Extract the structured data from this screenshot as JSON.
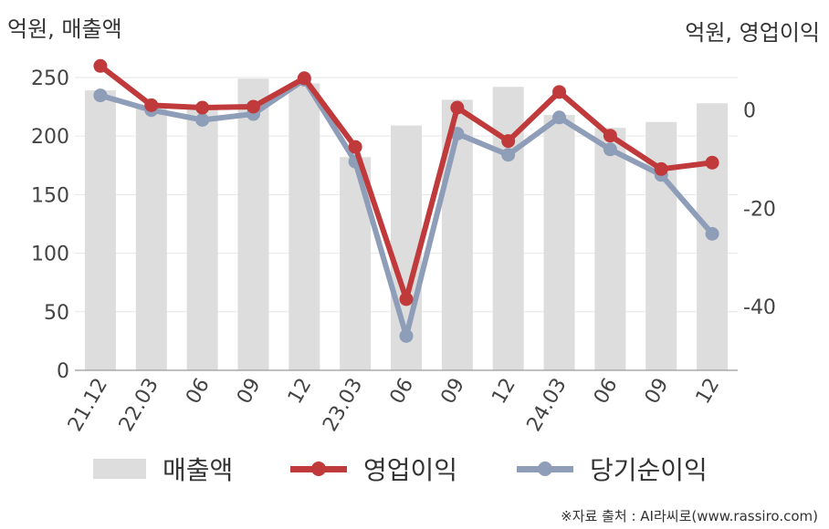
{
  "chart_data": {
    "type": "bar+line",
    "left_axis_label": "억원, 매출액",
    "right_axis_label": "억원, 영업이익",
    "categories": [
      "21.12",
      "22.03",
      "06",
      "09",
      "12",
      "23.03",
      "06",
      "09",
      "12",
      "24.03",
      "06",
      "09",
      "12"
    ],
    "left_ticks": [
      "0",
      "50",
      "100",
      "150",
      "200",
      "250"
    ],
    "right_ticks": [
      "0",
      "-20",
      "-40"
    ],
    "left_ylim": [
      0,
      285
    ],
    "right_ylim": [
      -53,
      15
    ],
    "series": [
      {
        "name": "매출액",
        "type": "bar",
        "axis": "left",
        "color": "#dddddd",
        "values": [
          239,
          225,
          224,
          249,
          245,
          182,
          209,
          231,
          242,
          218,
          207,
          212,
          228
        ]
      },
      {
        "name": "영업이익",
        "type": "line",
        "axis": "right",
        "color": "#c0393b",
        "values": [
          9,
          1,
          0.5,
          0.7,
          6.5,
          -7.5,
          -38.5,
          0.5,
          -6.3,
          3.7,
          -5.2,
          -12,
          -10.7
        ]
      },
      {
        "name": "당기순이익",
        "type": "line",
        "axis": "right",
        "color": "#8e9db8",
        "values": [
          3,
          0,
          -2,
          -0.8,
          6.2,
          -10.5,
          -46,
          -4.8,
          -9.1,
          -1.5,
          -8,
          -13.2,
          -25.2
        ]
      }
    ],
    "grid": true,
    "legend_position": "bottom"
  },
  "source": "※자료 출처 : AI라씨로(www.rassiro.com)"
}
